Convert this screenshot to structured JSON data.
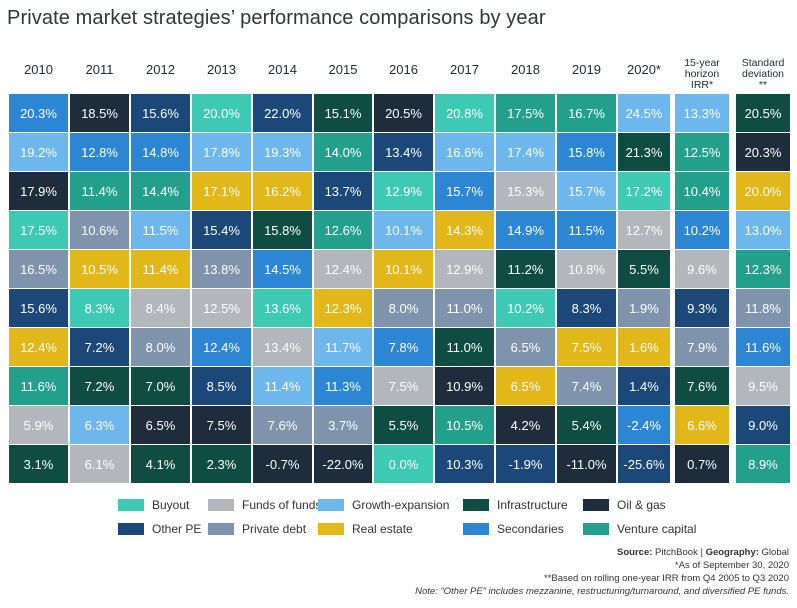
{
  "title": "Private market strategies’ performance comparisons by year",
  "colors": {
    "Buyout": "#3ec9b4",
    "Funds of funds": "#b3b7bc",
    "Growth-expansion": "#6eb7ec",
    "Infrastructure": "#0f4d42",
    "Oil & gas": "#1f2c3c",
    "Other PE": "#1b4878",
    "Private debt": "#7f94ac",
    "Real estate": "#e1b719",
    "Secondaries": "#2c86d4",
    "Venture capital": "#23a08b"
  },
  "chart_data": {
    "type": "table",
    "title": "Private market strategies’ performance comparisons by year",
    "columns": [
      "2010",
      "2011",
      "2012",
      "2013",
      "2014",
      "2015",
      "2016",
      "2017",
      "2018",
      "2019",
      "2020*",
      "15-year horizon IRR*",
      "Standard deviation **"
    ],
    "column_labels": [
      "2010",
      "2011",
      "2012",
      "2013",
      "2014",
      "2015",
      "2016",
      "2017",
      "2018",
      "2019",
      "2020*",
      "15-year\nhorizon\nIRR*",
      "Standard\ndeviation\n**"
    ],
    "cells": [
      [
        [
          "20.3%",
          "Secondaries"
        ],
        [
          "19.2%",
          "Growth-expansion"
        ],
        [
          "17.9%",
          "Oil & gas"
        ],
        [
          "17.5%",
          "Buyout"
        ],
        [
          "16.5%",
          "Private debt"
        ],
        [
          "15.6%",
          "Other PE"
        ],
        [
          "12.4%",
          "Real estate"
        ],
        [
          "11.6%",
          "Venture capital"
        ],
        [
          "5.9%",
          "Funds of funds"
        ],
        [
          "3.1%",
          "Infrastructure"
        ]
      ],
      [
        [
          "18.5%",
          "Oil & gas"
        ],
        [
          "12.8%",
          "Secondaries"
        ],
        [
          "11.4%",
          "Venture capital"
        ],
        [
          "10.6%",
          "Private debt"
        ],
        [
          "10.5%",
          "Real estate"
        ],
        [
          "8.3%",
          "Buyout"
        ],
        [
          "7.2%",
          "Other PE"
        ],
        [
          "7.2%",
          "Infrastructure"
        ],
        [
          "6.3%",
          "Growth-expansion"
        ],
        [
          "6.1%",
          "Funds of funds"
        ]
      ],
      [
        [
          "15.6%",
          "Other PE"
        ],
        [
          "14.8%",
          "Secondaries"
        ],
        [
          "14.4%",
          "Venture capital"
        ],
        [
          "11.5%",
          "Growth-expansion"
        ],
        [
          "11.4%",
          "Real estate"
        ],
        [
          "8.4%",
          "Funds of funds"
        ],
        [
          "8.0%",
          "Private debt"
        ],
        [
          "7.0%",
          "Infrastructure"
        ],
        [
          "6.5%",
          "Oil & gas"
        ],
        [
          "4.1%",
          "Infrastructure"
        ]
      ],
      [
        [
          "20.0%",
          "Buyout"
        ],
        [
          "17.8%",
          "Growth-expansion"
        ],
        [
          "17.1%",
          "Real estate"
        ],
        [
          "15.4%",
          "Other PE"
        ],
        [
          "13.8%",
          "Private debt"
        ],
        [
          "12.5%",
          "Funds of funds"
        ],
        [
          "12.4%",
          "Secondaries"
        ],
        [
          "8.5%",
          "Other PE"
        ],
        [
          "7.5%",
          "Oil & gas"
        ],
        [
          "2.3%",
          "Infrastructure"
        ]
      ],
      [
        [
          "22.0%",
          "Other PE"
        ],
        [
          "19.3%",
          "Growth-expansion"
        ],
        [
          "16.2%",
          "Real estate"
        ],
        [
          "15.8%",
          "Infrastructure"
        ],
        [
          "14.5%",
          "Secondaries"
        ],
        [
          "13.6%",
          "Buyout"
        ],
        [
          "13.4%",
          "Funds of funds"
        ],
        [
          "11.4%",
          "Growth-expansion"
        ],
        [
          "7.6%",
          "Private debt"
        ],
        [
          "-0.7%",
          "Oil & gas"
        ]
      ],
      [
        [
          "15.1%",
          "Infrastructure"
        ],
        [
          "14.0%",
          "Venture capital"
        ],
        [
          "13.7%",
          "Other PE"
        ],
        [
          "12.6%",
          "Venture capital"
        ],
        [
          "12.4%",
          "Funds of funds"
        ],
        [
          "12.3%",
          "Real estate"
        ],
        [
          "11.7%",
          "Growth-expansion"
        ],
        [
          "11.3%",
          "Secondaries"
        ],
        [
          "3.7%",
          "Private debt"
        ],
        [
          "-22.0%",
          "Oil & gas"
        ]
      ],
      [
        [
          "20.5%",
          "Oil & gas"
        ],
        [
          "13.4%",
          "Other PE"
        ],
        [
          "12.9%",
          "Buyout"
        ],
        [
          "10.1%",
          "Growth-expansion"
        ],
        [
          "10.1%",
          "Real estate"
        ],
        [
          "8.0%",
          "Private debt"
        ],
        [
          "7.8%",
          "Secondaries"
        ],
        [
          "7.5%",
          "Funds of funds"
        ],
        [
          "5.5%",
          "Infrastructure"
        ],
        [
          "0.0%",
          "Buyout"
        ]
      ],
      [
        [
          "20.8%",
          "Buyout"
        ],
        [
          "16.6%",
          "Growth-expansion"
        ],
        [
          "15.7%",
          "Secondaries"
        ],
        [
          "14.3%",
          "Real estate"
        ],
        [
          "12.9%",
          "Funds of funds"
        ],
        [
          "11.0%",
          "Private debt"
        ],
        [
          "11.0%",
          "Infrastructure"
        ],
        [
          "10.9%",
          "Oil & gas"
        ],
        [
          "10.5%",
          "Venture capital"
        ],
        [
          "10.3%",
          "Other PE"
        ]
      ],
      [
        [
          "17.5%",
          "Venture capital"
        ],
        [
          "17.4%",
          "Growth-expansion"
        ],
        [
          "15.3%",
          "Funds of funds"
        ],
        [
          "14.9%",
          "Secondaries"
        ],
        [
          "11.2%",
          "Infrastructure"
        ],
        [
          "10.2%",
          "Buyout"
        ],
        [
          "6.5%",
          "Private debt"
        ],
        [
          "6.5%",
          "Real estate"
        ],
        [
          "4.2%",
          "Oil & gas"
        ],
        [
          "-1.9%",
          "Other PE"
        ]
      ],
      [
        [
          "16.7%",
          "Venture capital"
        ],
        [
          "15.8%",
          "Secondaries"
        ],
        [
          "15.7%",
          "Growth-expansion"
        ],
        [
          "11.5%",
          "Secondaries"
        ],
        [
          "10.8%",
          "Funds of funds"
        ],
        [
          "8.3%",
          "Other PE"
        ],
        [
          "7.5%",
          "Real estate"
        ],
        [
          "7.4%",
          "Private debt"
        ],
        [
          "5.4%",
          "Infrastructure"
        ],
        [
          "-11.0%",
          "Oil & gas"
        ]
      ],
      [
        [
          "24.5%",
          "Growth-expansion"
        ],
        [
          "21.3%",
          "Infrastructure"
        ],
        [
          "17.2%",
          "Buyout"
        ],
        [
          "12.7%",
          "Funds of funds"
        ],
        [
          "5.5%",
          "Infrastructure"
        ],
        [
          "1.9%",
          "Private debt"
        ],
        [
          "1.6%",
          "Real estate"
        ],
        [
          "1.4%",
          "Other PE"
        ],
        [
          "-2.4%",
          "Secondaries"
        ],
        [
          "-25.6%",
          "Other PE"
        ]
      ],
      [
        [
          "13.3%",
          "Growth-expansion"
        ],
        [
          "12.5%",
          "Venture capital"
        ],
        [
          "10.4%",
          "Venture capital"
        ],
        [
          "10.2%",
          "Secondaries"
        ],
        [
          "9.6%",
          "Funds of funds"
        ],
        [
          "9.3%",
          "Other PE"
        ],
        [
          "7.9%",
          "Private debt"
        ],
        [
          "7.6%",
          "Infrastructure"
        ],
        [
          "6.6%",
          "Real estate"
        ],
        [
          "0.7%",
          "Oil & gas"
        ]
      ],
      [
        [
          "20.5%",
          "Infrastructure"
        ],
        [
          "20.3%",
          "Oil & gas"
        ],
        [
          "20.0%",
          "Real estate"
        ],
        [
          "13.0%",
          "Growth-expansion"
        ],
        [
          "12.3%",
          "Venture capital"
        ],
        [
          "11.8%",
          "Private debt"
        ],
        [
          "11.6%",
          "Secondaries"
        ],
        [
          "9.5%",
          "Funds of funds"
        ],
        [
          "9.0%",
          "Other PE"
        ],
        [
          "8.9%",
          "Venture capital"
        ]
      ]
    ],
    "legend": [
      "Buyout",
      "Funds of funds",
      "Growth-expansion",
      "Infrastructure",
      "Oil & gas",
      "Other PE",
      "Private debt",
      "Real estate",
      "Secondaries",
      "Venture capital"
    ],
    "legend_placement": "bottom"
  },
  "notes": {
    "source_label": "Source:",
    "source_value": "PitchBook",
    "separator": " | ",
    "geo_label": "Geography:",
    "geo_value": "Global",
    "asof": "*As of September 30, 2020",
    "rolling": "**Based on rolling one-year IRR from Q4 2005 to Q3 2020",
    "note": "Note: “Other PE” includes mezzanine, restructuring/turnaround, and diversified PE funds."
  }
}
